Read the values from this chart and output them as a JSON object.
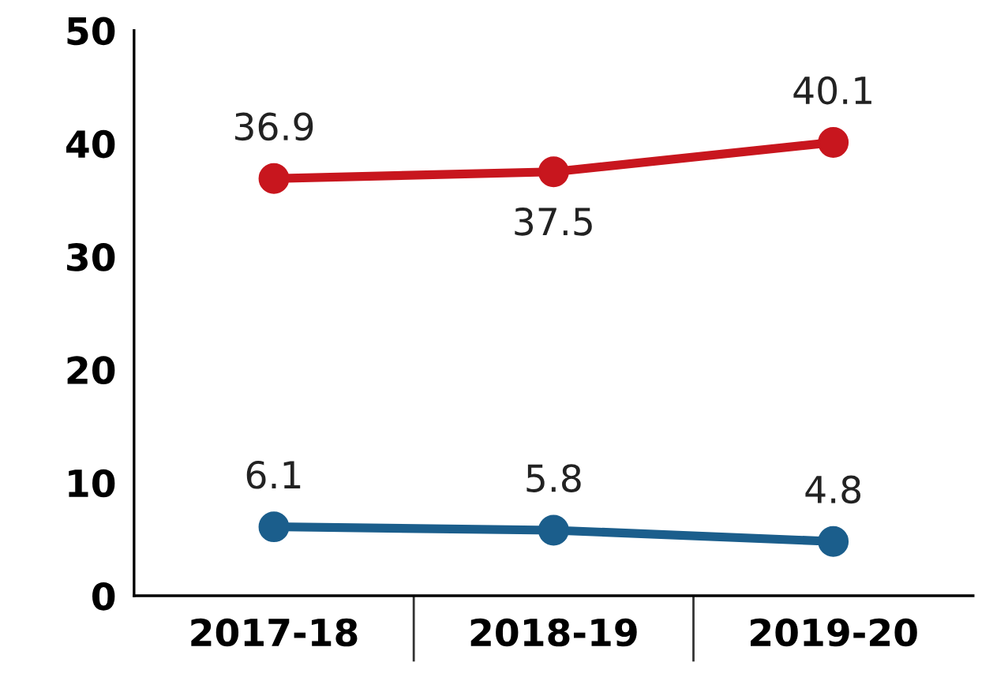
{
  "chart_data": {
    "type": "line",
    "categories": [
      "2017-18",
      "2018-19",
      "2019-20"
    ],
    "series": [
      {
        "color": "#c8161e",
        "values": [
          36.9,
          37.5,
          40.1
        ]
      },
      {
        "color": "#1b5e8c",
        "values": [
          6.1,
          5.8,
          4.8
        ]
      }
    ],
    "ylim": [
      0,
      50
    ],
    "yticks": [
      0,
      10,
      20,
      30,
      40,
      50
    ],
    "data_labels": true,
    "marker": "circle",
    "grid": false,
    "legend": false
  }
}
